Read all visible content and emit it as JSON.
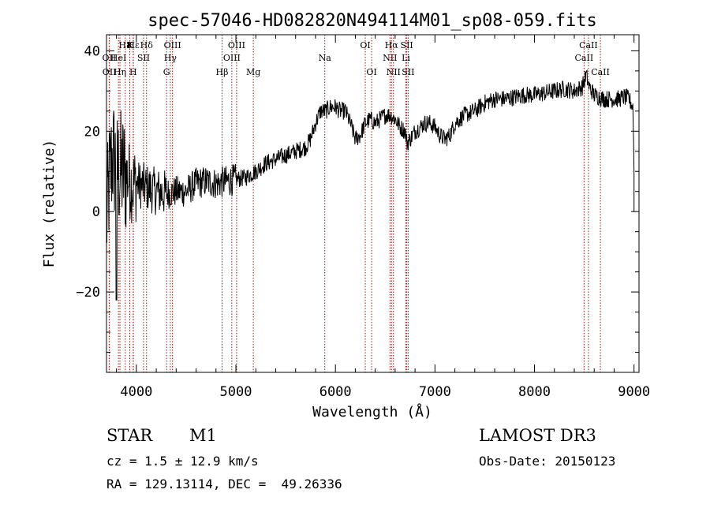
{
  "chart_data": {
    "type": "line",
    "title": "spec-57046-HD082820N494114M01_sp08-059.fits",
    "xlabel": "Wavelength (Å)",
    "ylabel": "Flux (relative)",
    "xlim": [
      3700,
      9050
    ],
    "ylim": [
      -40,
      44
    ],
    "x_ticks": [
      4000,
      5000,
      6000,
      7000,
      8000,
      9000
    ],
    "y_ticks": [
      -20,
      0,
      20,
      40
    ],
    "x_tick_labels": [
      "4000",
      "5000",
      "6000",
      "7000",
      "8000",
      "9000"
    ],
    "y_tick_labels": [
      "−20",
      "0",
      "20",
      "40"
    ],
    "series": [
      {
        "name": "spectrum",
        "color": "#000000",
        "x": [
          3700,
          3730,
          3760,
          3790,
          3820,
          3850,
          3900,
          3950,
          4000,
          4100,
          4200,
          4300,
          4400,
          4500,
          4600,
          4700,
          4800,
          4900,
          5000,
          5100,
          5200,
          5300,
          5400,
          5500,
          5600,
          5700,
          5750,
          5800,
          5850,
          5900,
          5950,
          6000,
          6050,
          6100,
          6150,
          6200,
          6250,
          6300,
          6350,
          6400,
          6450,
          6500,
          6550,
          6600,
          6650,
          6700,
          6720,
          6750,
          6800,
          6850,
          6900,
          6950,
          7000,
          7050,
          7100,
          7150,
          7200,
          7300,
          7400,
          7500,
          7600,
          7700,
          7800,
          7900,
          8000,
          8100,
          8200,
          8300,
          8400,
          8480,
          8520,
          8550,
          8600,
          8650,
          8700,
          8750,
          8800,
          8850,
          8900,
          8950,
          8990,
          9000
        ],
        "y": [
          -3,
          8,
          14,
          12,
          10,
          10,
          9,
          7,
          7,
          6,
          5,
          4.5,
          5,
          5,
          7,
          7.5,
          7,
          7.5,
          8,
          8.5,
          10,
          12,
          13,
          14,
          15,
          16,
          18,
          22,
          25,
          25,
          26,
          26,
          25,
          25,
          22,
          18,
          19,
          22,
          23,
          22,
          23,
          24,
          24,
          23,
          21,
          20,
          17,
          18,
          20,
          21,
          22,
          22,
          21,
          19,
          18,
          19,
          22,
          24,
          25,
          27,
          28,
          28,
          28.5,
          29,
          29,
          29.5,
          30,
          30.5,
          30,
          31,
          34,
          31,
          29,
          28.5,
          28,
          28,
          28,
          28,
          28.5,
          28,
          26,
          10
        ]
      }
    ],
    "lines": [
      {
        "name": "Hε",
        "wave": 3970,
        "row": 1
      },
      {
        "name": "H8",
        "wave": 3889,
        "row": 1
      },
      {
        "name": "K",
        "wave": 3934,
        "row": 1
      },
      {
        "name": "Hδ",
        "wave": 4102,
        "row": 1
      },
      {
        "name": "OIII",
        "wave": 4363,
        "row": 1
      },
      {
        "name": "OIII",
        "wave": 5007,
        "row": 1
      },
      {
        "name": "OI",
        "wave": 6300,
        "row": 1
      },
      {
        "name": "Hα",
        "wave": 6563,
        "row": 1
      },
      {
        "name": "SII",
        "wave": 6717,
        "row": 1
      },
      {
        "name": "CaII",
        "wave": 8542,
        "row": 1
      },
      {
        "name": "OII",
        "wave": 3727,
        "row": 2
      },
      {
        "name": "HeI",
        "wave": 3820,
        "row": 2
      },
      {
        "name": "SII",
        "wave": 4072,
        "row": 2
      },
      {
        "name": "Hγ",
        "wave": 4341,
        "row": 2
      },
      {
        "name": "OIII",
        "wave": 4959,
        "row": 2
      },
      {
        "name": "Na",
        "wave": 5893,
        "row": 2
      },
      {
        "name": "NII",
        "wave": 6548,
        "row": 2
      },
      {
        "name": "Li",
        "wave": 6708,
        "row": 2
      },
      {
        "name": "CaII",
        "wave": 8498,
        "row": 2
      },
      {
        "name": "OII",
        "wave": 3729,
        "row": 3
      },
      {
        "name": "Hη",
        "wave": 3835,
        "row": 3
      },
      {
        "name": "H",
        "wave": 3968,
        "row": 3
      },
      {
        "name": "G",
        "wave": 4304,
        "row": 3
      },
      {
        "name": "Hβ",
        "wave": 4861,
        "row": 3
      },
      {
        "name": "Mg",
        "wave": 5175,
        "row": 3
      },
      {
        "name": "OI",
        "wave": 6364,
        "row": 3
      },
      {
        "name": "NII",
        "wave": 6583,
        "row": 3
      },
      {
        "name": "SII",
        "wave": 6731,
        "row": 3
      },
      {
        "name": "CaII",
        "wave": 8662,
        "row": 3
      }
    ]
  },
  "info": {
    "object_class": "STAR",
    "subclass": "M1",
    "survey": "LAMOST DR3",
    "cz": "cz = 1.5 ± 12.9 km/s",
    "obs_date": "Obs-Date: 20150123",
    "coords": "RA = 129.13114, DEC =  49.26336"
  }
}
